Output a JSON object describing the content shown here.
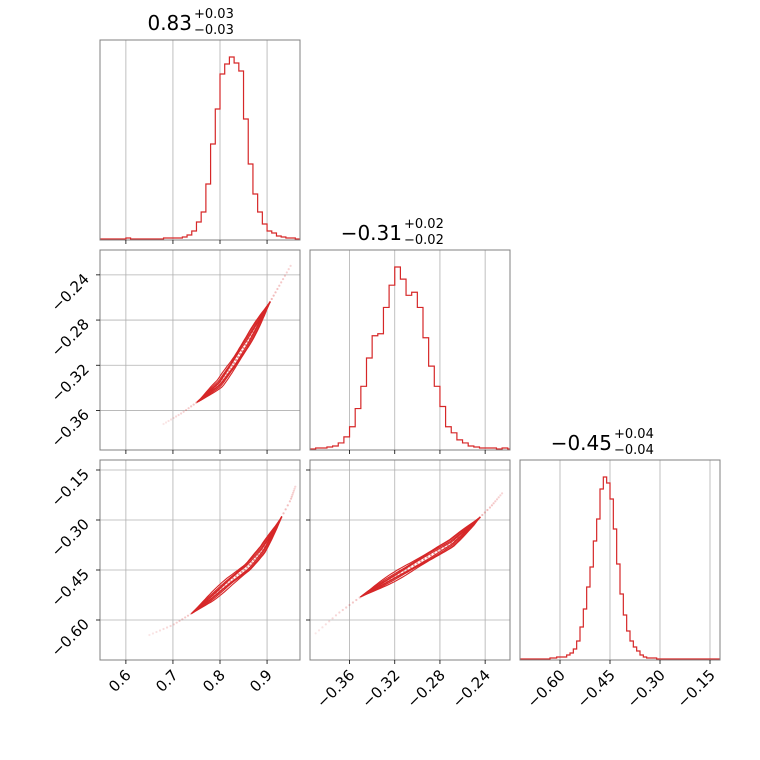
{
  "figure": {
    "type": "corner"
  },
  "chart_data": [
    {
      "type": "histogram",
      "panel": "hist-0",
      "title": {
        "main": "0.83",
        "upper": "+0.03",
        "lower": "−0.03"
      },
      "xlim": [
        0.545,
        0.97
      ],
      "xticks": [
        0.6,
        0.7,
        0.8,
        0.9
      ],
      "xtick_labels": [
        "0.6",
        "0.7",
        "0.8",
        "0.9"
      ],
      "grid": true,
      "series": [
        {
          "edges": [
            0.6,
            0.61,
            0.62,
            0.63,
            0.64,
            0.65,
            0.66,
            0.67,
            0.68,
            0.69,
            0.7,
            0.71,
            0.72,
            0.73,
            0.74,
            0.75,
            0.76,
            0.77,
            0.78,
            0.79,
            0.8,
            0.81,
            0.82,
            0.83,
            0.84,
            0.85,
            0.86,
            0.87,
            0.88,
            0.89,
            0.9,
            0.91,
            0.92,
            0.93,
            0.94,
            0.95,
            0.96
          ],
          "counts": [
            1,
            0,
            0,
            0,
            0,
            0,
            0,
            0,
            1,
            1,
            1,
            1,
            2,
            4,
            8,
            17,
            27,
            55,
            95,
            130,
            165,
            175,
            182,
            176,
            168,
            120,
            75,
            45,
            27,
            15,
            8,
            6,
            3,
            2,
            1,
            1
          ]
        }
      ]
    },
    {
      "type": "histogram",
      "panel": "hist-1",
      "title": {
        "main": "−0.31",
        "upper": "+0.02",
        "lower": "−0.02"
      },
      "xlim": [
        -0.395,
        -0.218
      ],
      "xticks": [
        -0.36,
        -0.32,
        -0.28,
        -0.24
      ],
      "xtick_labels": [
        "−0.36",
        "−0.32",
        "−0.28",
        "−0.24"
      ],
      "grid": true,
      "series": [
        {
          "edges": [
            -0.39,
            -0.385,
            -0.38,
            -0.375,
            -0.37,
            -0.365,
            -0.36,
            -0.355,
            -0.35,
            -0.345,
            -0.34,
            -0.335,
            -0.33,
            -0.325,
            -0.32,
            -0.315,
            -0.31,
            -0.305,
            -0.3,
            -0.295,
            -0.29,
            -0.285,
            -0.28,
            -0.275,
            -0.27,
            -0.265,
            -0.26,
            -0.255,
            -0.25,
            -0.245,
            -0.24,
            -0.235,
            -0.23,
            -0.225,
            -0.22
          ],
          "counts": [
            1,
            1,
            2,
            3,
            6,
            12,
            22,
            40,
            62,
            90,
            112,
            114,
            140,
            162,
            180,
            168,
            152,
            155,
            140,
            110,
            82,
            62,
            42,
            22,
            16,
            9,
            6,
            3,
            2,
            1,
            1,
            1,
            0,
            1
          ]
        }
      ]
    },
    {
      "type": "histogram",
      "panel": "hist-2",
      "title": {
        "main": "−0.45",
        "upper": "+0.04",
        "lower": "−0.04"
      },
      "xlim": [
        -0.72,
        -0.12
      ],
      "xticks": [
        -0.6,
        -0.45,
        -0.3,
        -0.15
      ],
      "xtick_labels": [
        "−0.60",
        "−0.45",
        "−0.30",
        "−0.15"
      ],
      "grid": true,
      "series": [
        {
          "edges": [
            -0.63,
            -0.62,
            -0.61,
            -0.6,
            -0.59,
            -0.58,
            -0.57,
            -0.56,
            -0.55,
            -0.54,
            -0.53,
            -0.52,
            -0.51,
            -0.5,
            -0.49,
            -0.48,
            -0.47,
            -0.46,
            -0.45,
            -0.44,
            -0.43,
            -0.42,
            -0.41,
            -0.4,
            -0.39,
            -0.38,
            -0.37,
            -0.36,
            -0.35,
            -0.34,
            -0.33,
            -0.32,
            -0.31,
            -0.3,
            -0.29,
            -0.28,
            -0.27
          ],
          "counts": [
            1,
            1,
            2,
            2,
            2,
            4,
            6,
            10,
            18,
            32,
            50,
            72,
            92,
            118,
            140,
            170,
            182,
            176,
            160,
            130,
            95,
            65,
            44,
            28,
            18,
            12,
            8,
            4,
            2,
            1,
            1,
            1,
            0,
            0,
            0,
            0
          ]
        }
      ]
    },
    {
      "type": "scatter",
      "panel": "scatter-1-0",
      "x_param": 0,
      "y_param": 1,
      "xlim": [
        0.545,
        0.97
      ],
      "ylim": [
        -0.395,
        -0.218
      ],
      "yticks": [
        -0.36,
        -0.32,
        -0.28,
        -0.24
      ],
      "ytick_labels": [
        "−0.36",
        "−0.32",
        "−0.28",
        "−0.24"
      ],
      "grid": true,
      "ridge": [
        [
          0.68,
          -0.372
        ],
        [
          0.72,
          -0.362
        ],
        [
          0.76,
          -0.35
        ],
        [
          0.8,
          -0.336
        ],
        [
          0.83,
          -0.318
        ],
        [
          0.86,
          -0.298
        ],
        [
          0.89,
          -0.276
        ],
        [
          0.92,
          -0.254
        ],
        [
          0.95,
          -0.232
        ]
      ],
      "contour_centers": [
        [
          0.835,
          -0.312
        ],
        [
          0.84,
          -0.31
        ]
      ],
      "contour_widths": [
        0.05,
        0.04,
        0.03,
        0.02
      ]
    },
    {
      "type": "scatter",
      "panel": "scatter-2-0",
      "x_param": 0,
      "y_param": 2,
      "xlim": [
        0.545,
        0.97
      ],
      "ylim": [
        -0.72,
        -0.12
      ],
      "yticks": [
        -0.6,
        -0.45,
        -0.3,
        -0.15
      ],
      "ytick_labels": [
        "−0.60",
        "−0.45",
        "−0.30",
        "−0.15"
      ],
      "grid": true,
      "ridge": [
        [
          0.65,
          -0.645
        ],
        [
          0.7,
          -0.615
        ],
        [
          0.74,
          -0.58
        ],
        [
          0.78,
          -0.535
        ],
        [
          0.82,
          -0.485
        ],
        [
          0.86,
          -0.44
        ],
        [
          0.89,
          -0.39
        ],
        [
          0.92,
          -0.32
        ],
        [
          0.95,
          -0.24
        ],
        [
          0.96,
          -0.2
        ]
      ]
    },
    {
      "type": "scatter",
      "panel": "scatter-2-1",
      "x_param": 1,
      "y_param": 2,
      "xlim": [
        -0.395,
        -0.218
      ],
      "ylim": [
        -0.72,
        -0.12
      ],
      "grid": true,
      "ridge": [
        [
          -0.39,
          -0.64
        ],
        [
          -0.37,
          -0.58
        ],
        [
          -0.35,
          -0.53
        ],
        [
          -0.33,
          -0.49
        ],
        [
          -0.31,
          -0.45
        ],
        [
          -0.29,
          -0.41
        ],
        [
          -0.27,
          -0.37
        ],
        [
          -0.25,
          -0.31
        ],
        [
          -0.235,
          -0.26
        ],
        [
          -0.225,
          -0.22
        ]
      ]
    }
  ]
}
